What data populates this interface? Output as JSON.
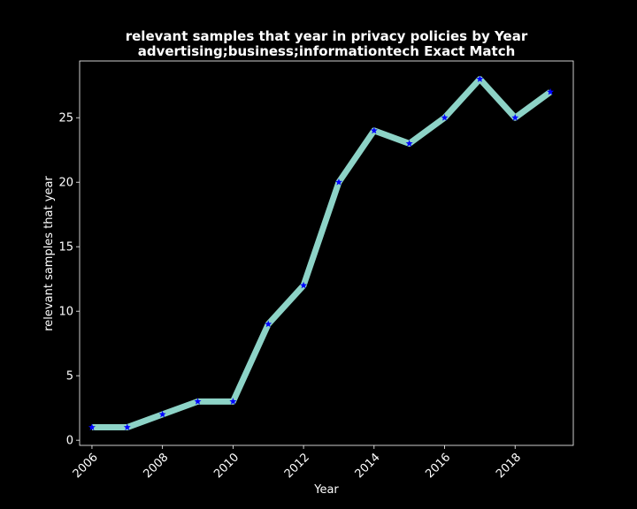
{
  "chart_data": {
    "type": "line",
    "title": "relevant samples that year in privacy policies by Year",
    "subtitle": "advertising;business;informationtech Exact Match",
    "xlabel": "Year",
    "ylabel": "relevant samples that year",
    "x": [
      2006,
      2007,
      2008,
      2009,
      2010,
      2011,
      2012,
      2013,
      2014,
      2015,
      2016,
      2017,
      2018,
      2019
    ],
    "series": [
      {
        "values": [
          1,
          1,
          2,
          3,
          3,
          9,
          12,
          20,
          24,
          23,
          25,
          28,
          25,
          27
        ]
      }
    ],
    "xlim": [
      2005.65,
      2019.65
    ],
    "ylim": [
      -0.4,
      29.4
    ],
    "xticks": [
      2006,
      2008,
      2010,
      2012,
      2014,
      2016,
      2018
    ],
    "xtick_labels": [
      "2006",
      "2008",
      "2010",
      "2012",
      "2014",
      "2016",
      "2018"
    ],
    "yticks": [
      0,
      5,
      10,
      15,
      20,
      25
    ],
    "ytick_labels": [
      "0",
      "5",
      "10",
      "15",
      "20",
      "25"
    ],
    "grid": false,
    "legend": "none",
    "colors": {
      "background": "#000000",
      "axes": "#ffffff",
      "line": "#8dd3c7",
      "marker": "#0000ff",
      "text": "#ffffff"
    }
  }
}
